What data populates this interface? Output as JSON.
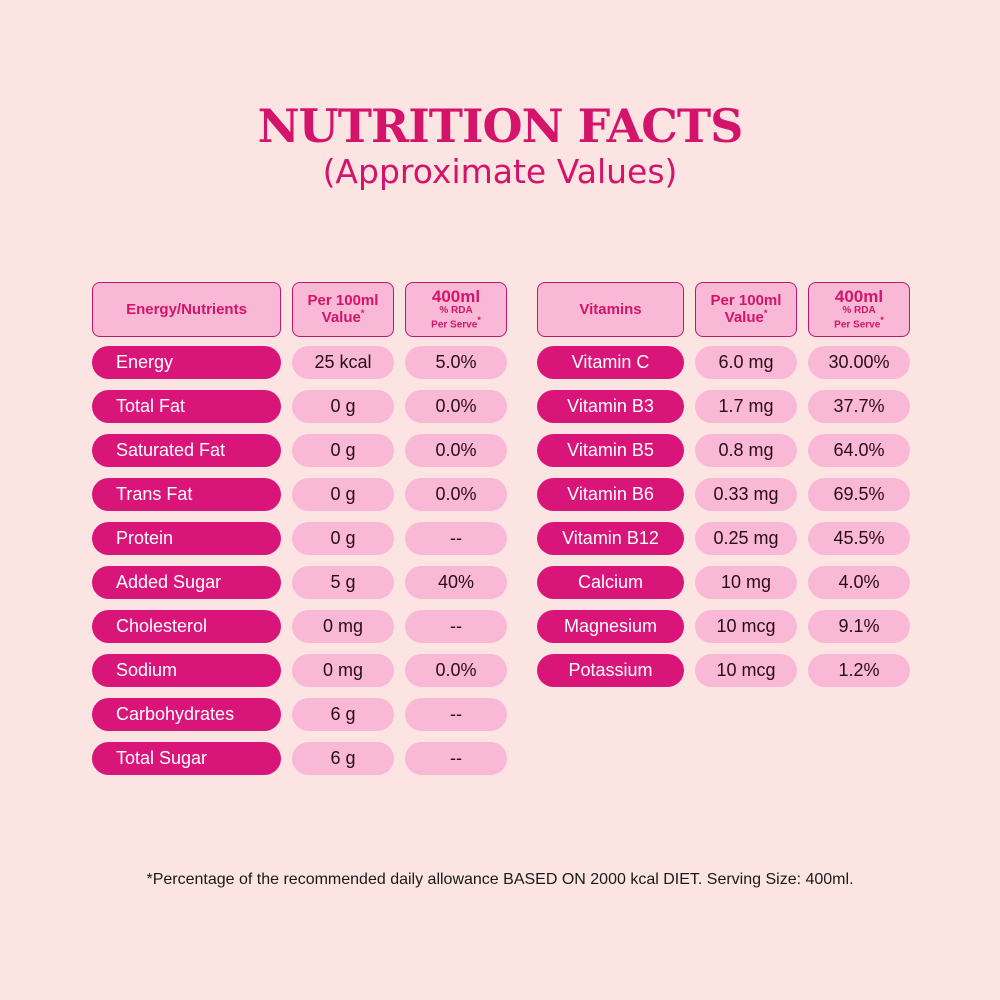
{
  "title": "NUTRITION FACTS",
  "subtitle": "(Approximate Values)",
  "left_table": {
    "headers": {
      "col1": "Energy/Nutrients",
      "col2_line1": "Per 100ml",
      "col2_line2": "Value",
      "col2_mark": "*",
      "col3_line1": "400ml",
      "col3_line2": "% RDA",
      "col3_line3": "Per Serve",
      "col3_mark": "*"
    },
    "rows": [
      {
        "name": "Energy",
        "per100": "25 kcal",
        "rda": "5.0%"
      },
      {
        "name": "Total Fat",
        "per100": "0 g",
        "rda": "0.0%"
      },
      {
        "name": "Saturated Fat",
        "per100": "0 g",
        "rda": "0.0%"
      },
      {
        "name": "Trans Fat",
        "per100": "0 g",
        "rda": "0.0%"
      },
      {
        "name": "Protein",
        "per100": "0 g",
        "rda": "--"
      },
      {
        "name": "Added Sugar",
        "per100": "5 g",
        "rda": "40%"
      },
      {
        "name": "Cholesterol",
        "per100": "0 mg",
        "rda": "--"
      },
      {
        "name": "Sodium",
        "per100": "0 mg",
        "rda": "0.0%"
      },
      {
        "name": "Carbohydrates",
        "per100": "6 g",
        "rda": "--"
      },
      {
        "name": "Total Sugar",
        "per100": "6 g",
        "rda": "--"
      }
    ]
  },
  "right_table": {
    "headers": {
      "col1": "Vitamins",
      "col2_line1": "Per 100ml",
      "col2_line2": "Value",
      "col2_mark": "*",
      "col3_line1": "400ml",
      "col3_line2": "% RDA",
      "col3_line3": "Per Serve",
      "col3_mark": "*"
    },
    "rows": [
      {
        "name": "Vitamin C",
        "per100": "6.0 mg",
        "rda": "30.00%"
      },
      {
        "name": "Vitamin B3",
        "per100": "1.7 mg",
        "rda": "37.7%"
      },
      {
        "name": "Vitamin B5",
        "per100": "0.8 mg",
        "rda": "64.0%"
      },
      {
        "name": "Vitamin B6",
        "per100": "0.33 mg",
        "rda": "69.5%"
      },
      {
        "name": "Vitamin B12",
        "per100": "0.25 mg",
        "rda": "45.5%"
      },
      {
        "name": "Calcium",
        "per100": "10 mg",
        "rda": "4.0%"
      },
      {
        "name": "Magnesium",
        "per100": "10 mcg",
        "rda": "9.1%"
      },
      {
        "name": "Potassium",
        "per100": "10 mcg",
        "rda": "1.2%"
      }
    ]
  },
  "footnote": "*Percentage of the recommended daily allowance BASED ON 2000 kcal DIET. Serving Size: 400ml.",
  "colors": {
    "background": "#fce4e3",
    "accent": "#d4146a",
    "name_pill": "#d9157a",
    "value_pill": "#f9b8d5"
  }
}
